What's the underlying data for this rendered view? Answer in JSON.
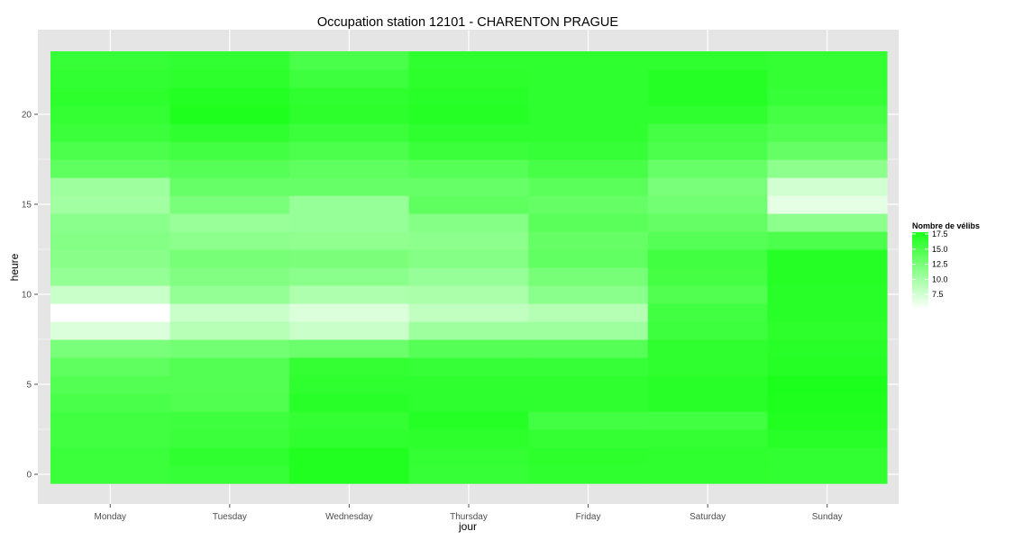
{
  "chart_data": {
    "type": "heatmap",
    "title": "Occupation station 12101 - CHARENTON PRAGUE",
    "xlabel": "jour",
    "ylabel": "heure",
    "categories": [
      "Monday",
      "Tuesday",
      "Wednesday",
      "Thursday",
      "Friday",
      "Saturday",
      "Sunday"
    ],
    "hours": [
      0,
      1,
      2,
      3,
      4,
      5,
      6,
      7,
      8,
      9,
      10,
      11,
      12,
      13,
      14,
      15,
      16,
      17,
      18,
      19,
      20,
      21,
      22,
      23
    ],
    "y_ticks": [
      0,
      5,
      10,
      15,
      20
    ],
    "ylim": [
      -0.5,
      23.5
    ],
    "values": [
      [
        16.0,
        16.0,
        15.6,
        15.6,
        15.2,
        14.6,
        14.0,
        12.5,
        7.0,
        5.0,
        8.0,
        11.0,
        11.6,
        11.8,
        11.5,
        10.2,
        10.5,
        14.0,
        15.0,
        16.0,
        16.4,
        16.8,
        16.5,
        16.2
      ],
      [
        16.2,
        16.6,
        16.0,
        15.8,
        14.8,
        14.6,
        14.6,
        12.8,
        9.0,
        8.0,
        11.0,
        12.0,
        12.6,
        11.4,
        10.7,
        12.5,
        13.5,
        14.5,
        15.5,
        16.6,
        17.6,
        17.3,
        16.8,
        16.5
      ],
      [
        17.4,
        17.4,
        16.6,
        16.4,
        17.0,
        16.6,
        16.4,
        13.2,
        8.0,
        7.0,
        9.5,
        11.5,
        12.4,
        11.2,
        10.8,
        10.8,
        13.5,
        14.0,
        15.0,
        16.0,
        16.8,
        16.6,
        15.8,
        15.2
      ],
      [
        16.2,
        16.4,
        16.8,
        17.2,
        16.7,
        16.6,
        16.2,
        14.5,
        10.5,
        8.5,
        9.7,
        10.8,
        11.8,
        11.4,
        11.8,
        14.0,
        13.5,
        14.5,
        16.0,
        16.6,
        17.2,
        17.0,
        16.8,
        16.6
      ],
      [
        16.6,
        16.8,
        16.4,
        15.5,
        16.6,
        16.6,
        16.2,
        14.5,
        10.5,
        9.2,
        11.5,
        12.6,
        13.8,
        13.6,
        14.2,
        13.6,
        14.2,
        15.3,
        16.2,
        16.6,
        16.7,
        16.7,
        16.7,
        16.6
      ],
      [
        16.6,
        16.6,
        16.4,
        15.6,
        17.0,
        17.0,
        16.6,
        16.6,
        15.8,
        15.6,
        14.8,
        15.4,
        15.6,
        14.5,
        13.6,
        12.8,
        12.5,
        13.5,
        15.0,
        15.4,
        16.6,
        17.2,
        17.2,
        16.6
      ],
      [
        16.5,
        16.5,
        17.0,
        17.4,
        17.6,
        17.7,
        17.2,
        17.0,
        16.8,
        17.0,
        17.0,
        17.2,
        17.2,
        15.0,
        11.4,
        6.5,
        7.5,
        11.4,
        13.6,
        14.8,
        15.4,
        16.2,
        16.4,
        16.4
      ]
    ],
    "color_low": "#ffffff",
    "color_high": "#1aff1a",
    "legend": {
      "title": "Nombre de vélibs",
      "position": "right",
      "breaks": [
        "17.5",
        "15.0",
        "12.5",
        "10.0",
        "7.5"
      ],
      "break_values": [
        17.5,
        15.0,
        12.5,
        10.0,
        7.5
      ],
      "range": [
        5.0,
        17.8
      ]
    },
    "panel_background": "#e5e5e5",
    "grid_color": "#ffffff",
    "grid": true
  }
}
